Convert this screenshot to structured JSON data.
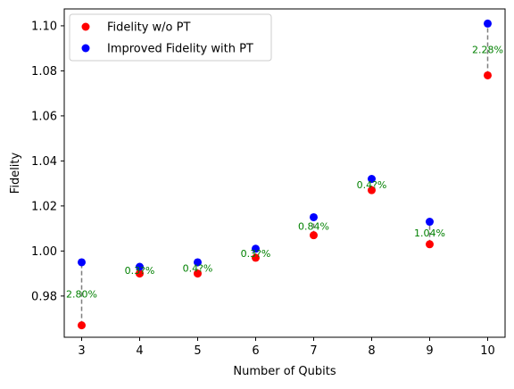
{
  "chart_data": {
    "type": "scatter",
    "title": "",
    "xlabel": "Number of Qubits",
    "ylabel": "Fidelity",
    "x": [
      3,
      4,
      5,
      6,
      7,
      8,
      9,
      10
    ],
    "xlim": [
      2.7,
      10.3
    ],
    "ylim": [
      0.9617,
      1.1075
    ],
    "xticks": [
      "3",
      "4",
      "5",
      "6",
      "7",
      "8",
      "9",
      "10"
    ],
    "yticks": [
      {
        "value": 0.98,
        "label": "0.98"
      },
      {
        "value": 1.0,
        "label": "1.00"
      },
      {
        "value": 1.02,
        "label": "1.02"
      },
      {
        "value": 1.04,
        "label": "1.04"
      },
      {
        "value": 1.06,
        "label": "1.06"
      },
      {
        "value": 1.08,
        "label": "1.08"
      },
      {
        "value": 1.1,
        "label": "1.10"
      }
    ],
    "series": [
      {
        "name": "Fidelity w/o PT",
        "color": "#ff0000",
        "values": [
          0.967,
          0.99,
          0.99,
          0.997,
          1.007,
          1.027,
          1.003,
          1.078
        ]
      },
      {
        "name": "Improved Fidelity with PT",
        "color": "#0000ff",
        "values": [
          0.995,
          0.993,
          0.995,
          1.001,
          1.015,
          1.032,
          1.013,
          1.101
        ]
      }
    ],
    "annotations": [
      "2.80%",
      "0.3?%",
      "0.4?%",
      "0.3?%",
      "0.84%",
      "0.4?%",
      "1.04%",
      "2.28%"
    ],
    "annotation_color": "#008000",
    "connector_style": "dashed grey",
    "legend_position": "top-left",
    "grid": false
  }
}
